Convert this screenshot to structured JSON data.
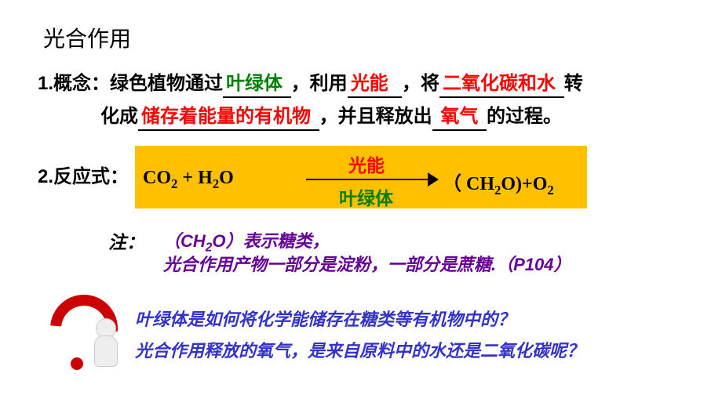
{
  "title": "光合作用",
  "concept": {
    "prefix": "1.概念：",
    "t1": "绿色植物通过",
    "b1": "叶绿体",
    "t2": "，利用",
    "b2": "光能",
    "t3": "，将",
    "b3": "二氧化碳和水",
    "t4": "转",
    "t5": "化成",
    "b4": "储存着能量的有机物",
    "t6": "，并且释放出",
    "b5": "氧气",
    "t7": "的过程。"
  },
  "reaction": {
    "label": "2.反应式：",
    "left_a": "CO",
    "left_a_sub": "2",
    "plus": "  +  H",
    "left_b_sub": "2",
    "left_c": "O",
    "arrow_top": "光能",
    "arrow_bottom": "叶绿体",
    "right_a": "（ CH",
    "right_a_sub": "2",
    "right_b": "O)+O",
    "right_b_sub": "2"
  },
  "note": {
    "label": "注：",
    "l1_a": "（CH",
    "l1_sub": "2",
    "l1_b": "O）表示糖类，",
    "l2": "光合作用产物一部分是淀粉，一部分是蔗糖.（P104）"
  },
  "questions": {
    "q1": "叶绿体是如何将化学能储存在糖类等有机物中的？",
    "q2": "光合作用释放的氧气，是来自原料中的水还是二氧化碳呢？"
  },
  "colors": {
    "red": "#ff0000",
    "green": "#008000",
    "blue": "#3333cc",
    "purple": "#660099",
    "highlight": "#ffc000",
    "qmark": "#cc0000"
  }
}
